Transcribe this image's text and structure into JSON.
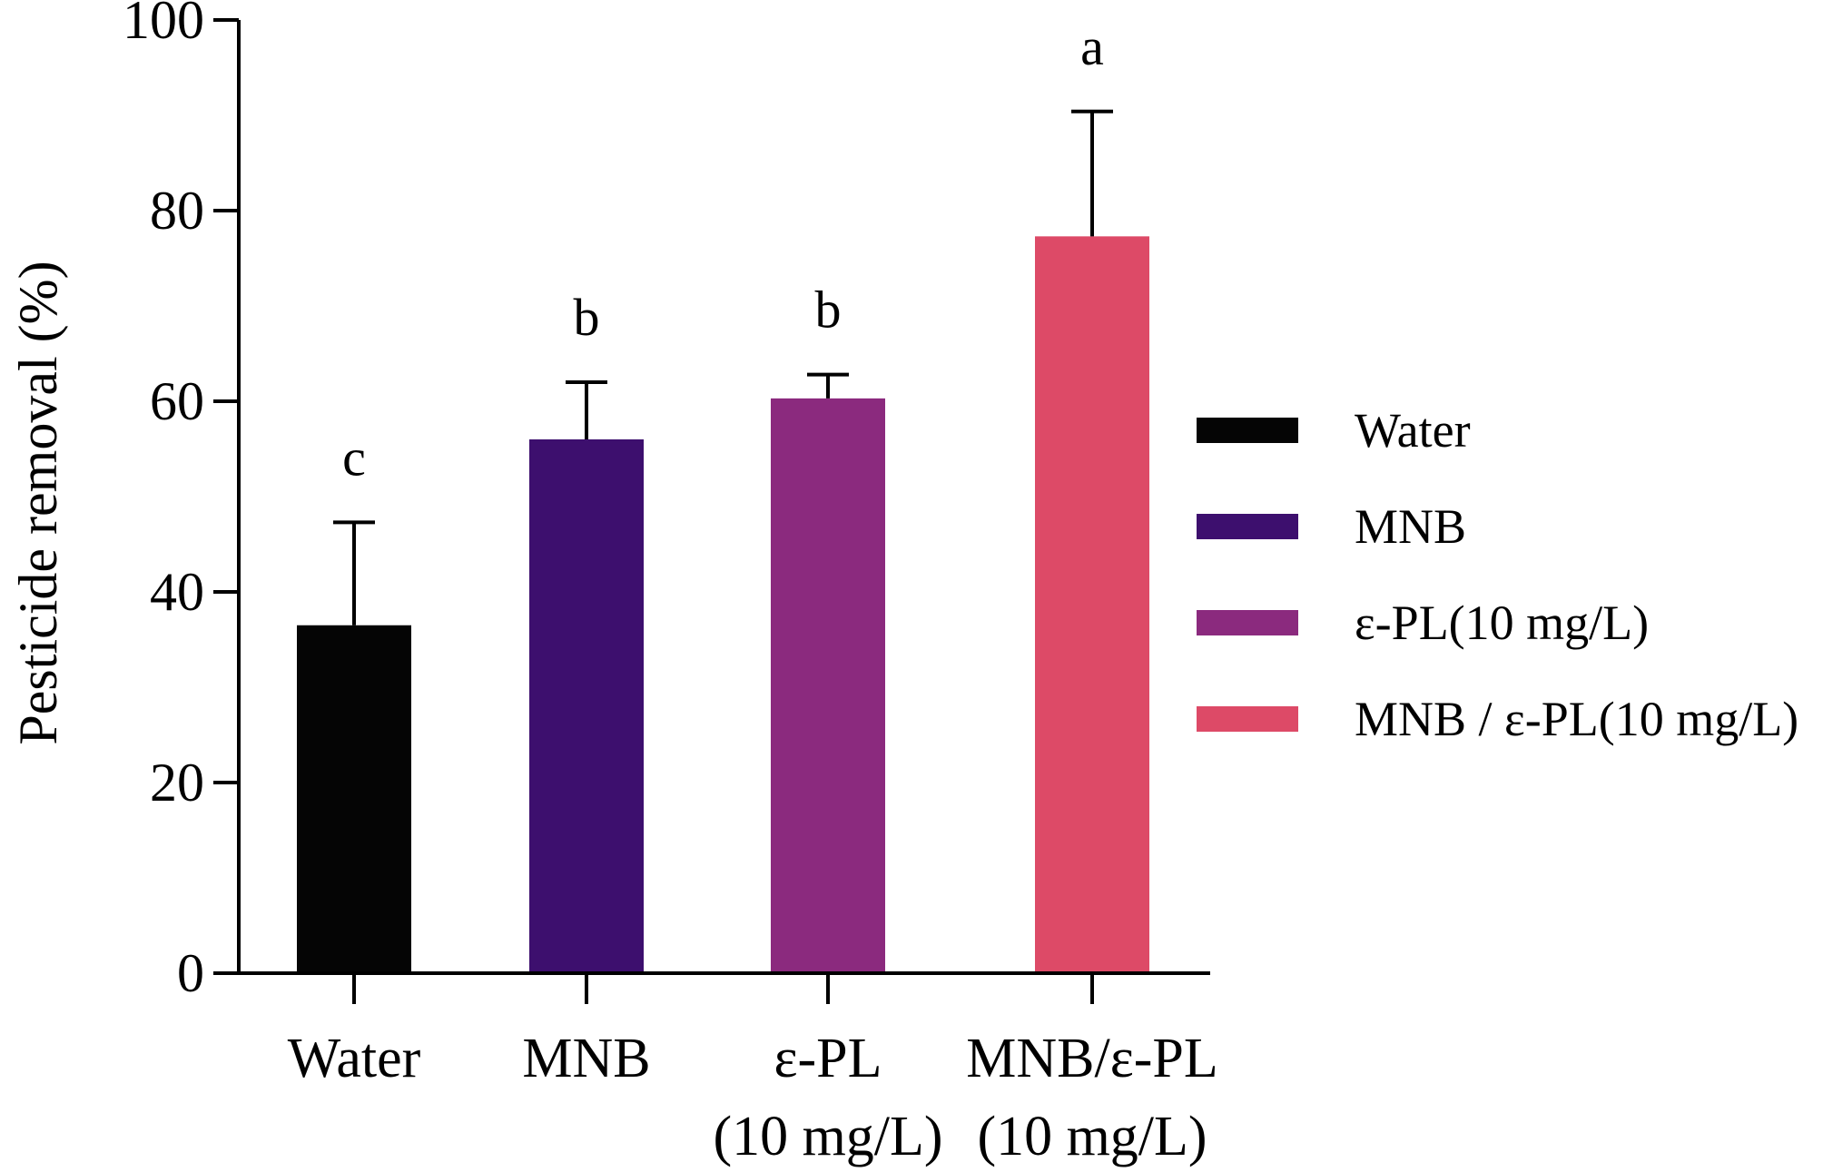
{
  "chart_data": {
    "type": "bar",
    "title": "",
    "xlabel": "",
    "ylabel": "Pesticide removal (%)",
    "ylim": [
      0,
      100
    ],
    "yticks": [
      0,
      20,
      40,
      60,
      80,
      100
    ],
    "grid": false,
    "legend_position": "right",
    "categories": [
      {
        "id": "water",
        "lines": [
          "Water"
        ]
      },
      {
        "id": "mnb",
        "lines": [
          "MNB"
        ]
      },
      {
        "id": "epl",
        "lines": [
          "ε-PL",
          "(10 mg/L)"
        ]
      },
      {
        "id": "mnb-epl",
        "lines": [
          "MNB/ε-PL",
          "(10 mg/L)"
        ]
      }
    ],
    "values": [
      36.5,
      56.0,
      60.3,
      77.3
    ],
    "errors": [
      10.8,
      6.0,
      2.5,
      13.1
    ],
    "significance": [
      "c",
      "b",
      "b",
      "a"
    ],
    "colors": [
      "#050505",
      "#3d0f6e",
      "#8b2a7e",
      "#dd4a67"
    ],
    "legend": [
      "Water",
      "MNB",
      "ε-PL(10 mg/L)",
      "MNB / ε-PL(10 mg/L)"
    ]
  }
}
